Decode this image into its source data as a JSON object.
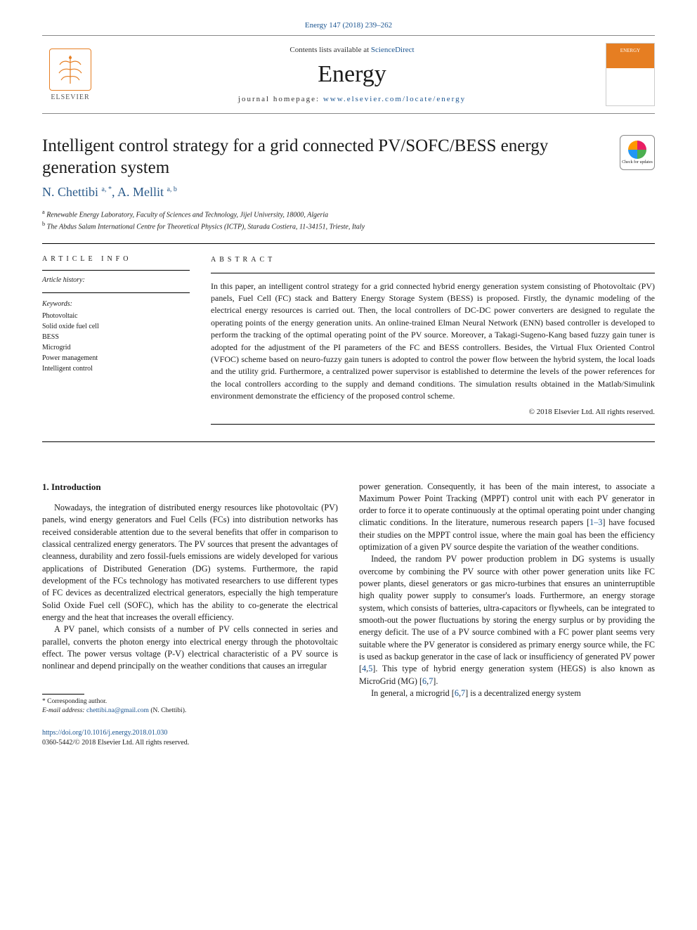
{
  "citation": "Energy 147 (2018) 239–262",
  "header": {
    "elsevier_label": "ELSEVIER",
    "contents_prefix": "Contents lists available at ",
    "contents_link": "ScienceDirect",
    "journal_name": "Energy",
    "homepage_prefix": "journal homepage: ",
    "homepage_url": "www.elsevier.com/locate/energy",
    "cover_text": "ENERGY"
  },
  "title": "Intelligent control strategy for a grid connected PV/SOFC/BESS energy generation system",
  "check_updates_label": "Check for updates",
  "authors_html": "N. Chettibi <sup>a, *</sup>, A. Mellit <sup>a, b</sup>",
  "affiliations": {
    "a": "Renewable Energy Laboratory, Faculty of Sciences and Technology, Jijel University, 18000, Algeria",
    "b": "The Abdus Salam International Centre for Theoretical Physics (ICTP), Starada Costiera, 11-34151, Trieste, Italy"
  },
  "article_info": {
    "heading": "ARTICLE INFO",
    "history_label": "Article history:",
    "keywords_label": "Keywords:",
    "keywords": [
      "Photovoltaic",
      "Solid oxide fuel cell",
      "BESS",
      "Microgrid",
      "Power management",
      "Intelligent control"
    ]
  },
  "abstract": {
    "heading": "ABSTRACT",
    "text": "In this paper, an intelligent control strategy for a grid connected hybrid energy generation system consisting of Photovoltaic (PV) panels, Fuel Cell (FC) stack and Battery Energy Storage System (BESS) is proposed. Firstly, the dynamic modeling of the electrical energy resources is carried out. Then, the local controllers of DC-DC power converters are designed to regulate the operating points of the energy generation units. An online-trained Elman Neural Network (ENN) based controller is developed to perform the tracking of the optimal operating point of the PV source. Moreover, a Takagi-Sugeno-Kang based fuzzy gain tuner is adopted for the adjustment of the PI parameters of the FC and BESS controllers. Besides, the Virtual Flux Oriented Control (VFOC) scheme based on neuro-fuzzy gain tuners is adopted to control the power flow between the hybrid system, the local loads and the utility grid. Furthermore, a centralized power supervisor is established to determine the levels of the power references for the local controllers according to the supply and demand conditions. The simulation results obtained in the Matlab/Simulink environment demonstrate the efficiency of the proposed control scheme.",
    "copyright": "© 2018 Elsevier Ltd. All rights reserved."
  },
  "body": {
    "intro_heading": "1. Introduction",
    "left_p1": "Nowadays, the integration of distributed energy resources like photovoltaic (PV) panels, wind energy generators and Fuel Cells (FCs) into distribution networks has received considerable attention due to the several benefits that offer in comparison to classical centralized energy generators. The PV sources that present the advantages of cleanness, durability and zero fossil-fuels emissions are widely developed for various applications of Distributed Generation (DG) systems. Furthermore, the rapid development of the FCs technology has motivated researchers to use different types of FC devices as decentralized electrical generators, especially the high temperature Solid Oxide Fuel cell (SOFC), which has the ability to co-generate the electrical energy and the heat that increases the overall efficiency.",
    "left_p2": "A PV panel, which consists of a number of PV cells connected in series and parallel, converts the photon energy into electrical energy through the photovoltaic effect. The power versus voltage (P-V) electrical characteristic of a PV source is nonlinear and depend principally on the weather conditions that causes an irregular",
    "right_p1_a": "power generation. Consequently, it has been of the main interest, to associate a Maximum Power Point Tracking (MPPT) control unit with each PV generator in order to force it to operate continuously at the optimal operating point under changing climatic conditions. In the literature, numerous research papers [",
    "right_p1_ref1": "1–3",
    "right_p1_b": "] have focused their studies on the MPPT control issue, where the main goal has been the efficiency optimization of a given PV source despite the variation of the weather conditions.",
    "right_p2_a": "Indeed, the random PV power production problem in DG systems is usually overcome by combining the PV source with other power generation units like FC power plants, diesel generators or gas micro-turbines that ensures an uninterruptible high quality power supply to consumer's loads. Furthermore, an energy storage system, which consists of batteries, ultra-capacitors or flywheels, can be integrated to smooth-out the power fluctuations by storing the energy surplus or by providing the energy deficit. The use of a PV source combined with a FC power plant seems very suitable where the PV generator is considered as primary energy source while, the FC is used as backup generator in the case of lack or insufficiency of generated PV power [",
    "right_p2_ref1": "4",
    "right_p2_b": ",",
    "right_p2_ref2": "5",
    "right_p2_c": "]. This type of hybrid energy generation system (HEGS) is also known as MicroGrid (MG) [",
    "right_p2_ref3": "6",
    "right_p2_d": ",",
    "right_p2_ref4": "7",
    "right_p2_e": "].",
    "right_p3_a": "In general, a microgrid [",
    "right_p3_ref1": "6",
    "right_p3_b": ",",
    "right_p3_ref2": "7",
    "right_p3_c": "] is a decentralized energy system"
  },
  "footnotes": {
    "corresponding": "* Corresponding author.",
    "email_label": "E-mail address: ",
    "email": "chettibi.na@gmail.com",
    "email_suffix": " (N. Chettibi)."
  },
  "doi": {
    "url": "https://doi.org/10.1016/j.energy.2018.01.030",
    "issn_line": "0360-5442/© 2018 Elsevier Ltd. All rights reserved."
  }
}
